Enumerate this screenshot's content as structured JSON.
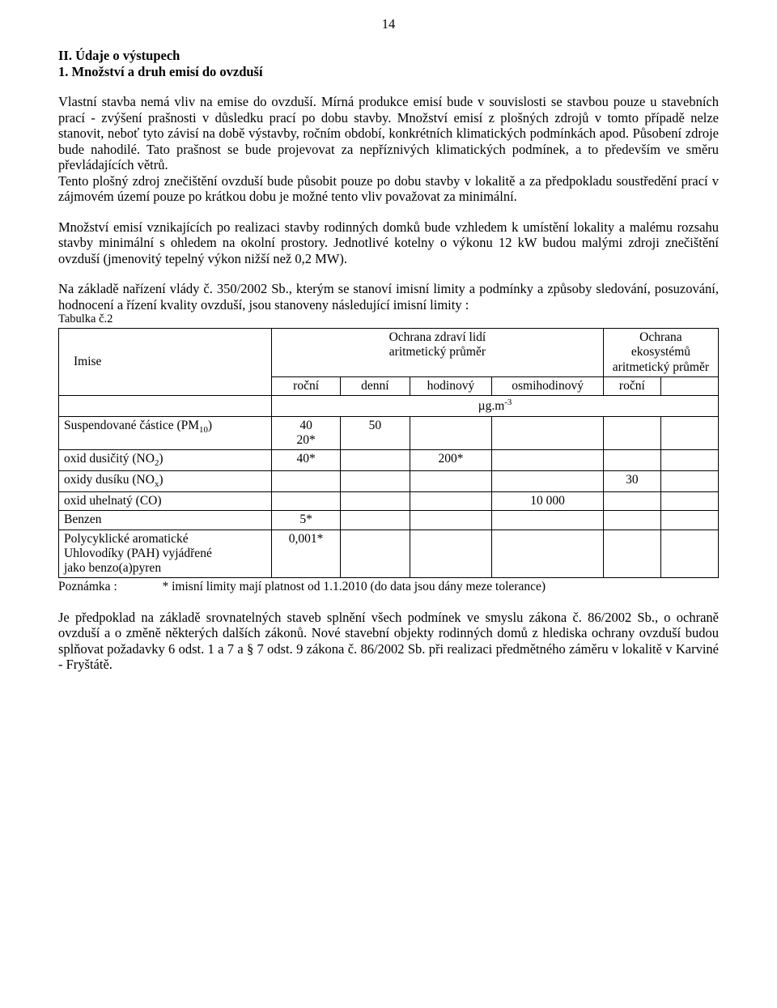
{
  "page_number": "14",
  "heading1": "II. Údaje o výstupech",
  "heading2": "1. Množství a druh emisí do ovzduší",
  "para1": "Vlastní stavba nemá vliv na emise do ovzduší. Mírná produkce emisí bude v souvislosti se stavbou pouze u stavebních prací - zvýšení prašnosti v důsledku prací po dobu stavby. Množství emisí z plošných zdrojů v tomto případě nelze stanovit, neboť tyto závisí na době výstavby, ročním období, konkrétních klimatických podmínkách apod. Působení zdroje bude nahodilé. Tato prašnost se bude projevovat za nepříznivých klimatických podmínek, a to především ve směru převládajících větrů.",
  "para2": "Tento plošný zdroj znečištění ovzduší bude působit pouze po dobu stavby v lokalitě a za předpokladu soustředění prací v zájmovém území pouze po krátkou dobu je možné tento vliv považovat za minimální.",
  "para3": "Množství emisí vznikajících po realizaci stavby rodinných domků bude vzhledem k umístění lokality a malému rozsahu stavby minimální s ohledem na okolní prostory. Jednotlivé kotelny o výkonu 12 kW budou malými zdroji znečištění ovzduší (jmenovitý tepelný výkon  nižší než 0,2 MW).",
  "para4": "Na základě nařízení vlády č. 350/2002 Sb., kterým se stanoví imisní limity a podmínky a způsoby sledování, posuzování, hodnocení a řízení kvality ovzduší, jsou stanoveny následující imisní limity :",
  "table_caption": "Tabulka č.2",
  "table": {
    "head_imise": "Imise",
    "head_ochrana_zdravi": "Ochrana zdraví lidí",
    "head_arit1": "aritmetický průměr",
    "head_ochrana_eco": "Ochrana ekosystémů",
    "head_arit2": "aritmetický průměr",
    "sub_rocni": "roční",
    "sub_denni": "denní",
    "sub_hodinovy": "hodinový",
    "sub_osmihodinovy": "osmihodinový",
    "sub_rocni2": "roční",
    "unit_line": "µg.m",
    "unit_sup": "-3",
    "rows": [
      {
        "label_pre": "Suspendované částice (PM",
        "label_sub": "10",
        "label_post": ")",
        "r": "40\n20*",
        "d": "50",
        "h": "",
        "o": "",
        "e": "",
        "f": ""
      },
      {
        "label_pre": "oxid dusičitý (NO",
        "label_sub": "2",
        "label_post": ")",
        "r": "40*",
        "d": "",
        "h": "200*",
        "o": "",
        "e": "",
        "f": ""
      },
      {
        "label_pre": "oxidy dusíku (NO",
        "label_sub": "x",
        "label_post": ")",
        "r": "",
        "d": "",
        "h": "",
        "o": "",
        "e": "30",
        "f": ""
      },
      {
        "label_pre": "oxid uhelnatý (CO)",
        "label_sub": "",
        "label_post": "",
        "r": "",
        "d": "",
        "h": "",
        "o": "10 000",
        "e": "",
        "f": ""
      },
      {
        "label_pre": "Benzen",
        "label_sub": "",
        "label_post": "",
        "r": "5*",
        "d": "",
        "h": "",
        "o": "",
        "e": "",
        "f": ""
      },
      {
        "label_pre": "Polycyklické aromatické\nUhlovodíky (PAH) vyjádřené\njako benzo(a)pyren",
        "label_sub": "",
        "label_post": "",
        "r": "0,001*",
        "d": "",
        "h": "",
        "o": "",
        "e": "",
        "f": ""
      }
    ]
  },
  "footnote_label": "Poznámka :",
  "footnote_text": "* imisní limity mají platnost od 1.1.2010 (do data jsou dány meze tolerance)",
  "para5": "Je předpoklad na základě srovnatelných staveb splnění všech podmínek ve smyslu zákona č. 86/2002 Sb., o ochraně ovzduší  a o změně některých dalších zákonů. Nové stavební objekty rodinných domů z hlediska ochrany ovzduší budou splňovat požadavky 6 odst. 1 a 7 a § 7 odst. 9 zákona č. 86/2002 Sb. při realizaci předmětného záměru v lokalitě v Karviné - Fryštátě."
}
